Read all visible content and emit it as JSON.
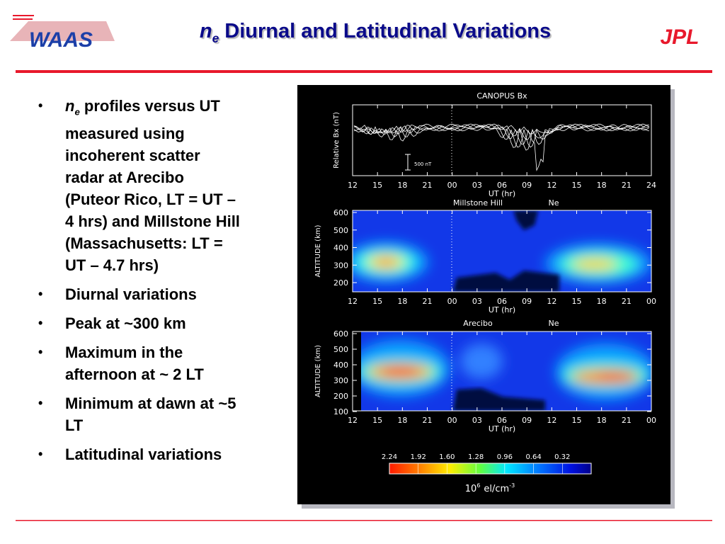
{
  "logos": {
    "left": "WAAS",
    "right": "JPL"
  },
  "header": {
    "title_symbol": "n",
    "title_subscript": "e",
    "title": "Diurnal and Latitudinal Variations"
  },
  "bullets": [
    {
      "symbol": "n",
      "subscript": "e",
      "text": "profiles versus UT measured using incoherent scatter radar at Arecibo (Puteor Rico, LT = UT – 4 hrs) and Millstone Hill (Massachusetts: LT = UT – 4.7 hrs)"
    },
    {
      "text": "Diurnal variations"
    },
    {
      "text": "Peak at ~300 km"
    },
    {
      "text": "Maximum in the afternoon at ~ 2 LT"
    },
    {
      "text": "Minimum at dawn at ~5 LT"
    },
    {
      "text": "Latitudinal variations"
    }
  ],
  "figure": {
    "panels": [
      {
        "title": "CANOPUS Bx",
        "y_label": "Relative Bx (nT)",
        "scale_label": "500 nT",
        "x_ticks": [
          "12",
          "15",
          "18",
          "21",
          "00",
          "03",
          "06",
          "09",
          "12",
          "15",
          "18",
          "21",
          "24"
        ],
        "x_label": "UT (hr)"
      },
      {
        "title": "Millstone Hill",
        "quantity": "Ne",
        "y_label": "ALTITUDE (km)",
        "y_ticks": [
          "600",
          "500",
          "400",
          "300",
          "200"
        ],
        "x_ticks": [
          "12",
          "15",
          "18",
          "21",
          "00",
          "03",
          "06",
          "09",
          "12",
          "15",
          "18",
          "21",
          "00"
        ],
        "x_label": "UT (hr)"
      },
      {
        "title": "Arecibo",
        "quantity": "Ne",
        "y_label": "ALTITUDE (km)",
        "y_ticks": [
          "600",
          "500",
          "400",
          "300",
          "200",
          "100"
        ],
        "x_ticks": [
          "12",
          "15",
          "18",
          "21",
          "00",
          "03",
          "06",
          "09",
          "12",
          "15",
          "18",
          "21",
          "00"
        ],
        "x_label": "UT (hr)"
      }
    ],
    "colorbar": {
      "ticks": [
        "2.24",
        "1.92",
        "1.60",
        "1.28",
        "0.96",
        "0.64",
        "0.32"
      ],
      "label_base": "10",
      "label_exp": "6",
      "label_unit": "el/cm",
      "unit_exp": "-3"
    }
  }
}
